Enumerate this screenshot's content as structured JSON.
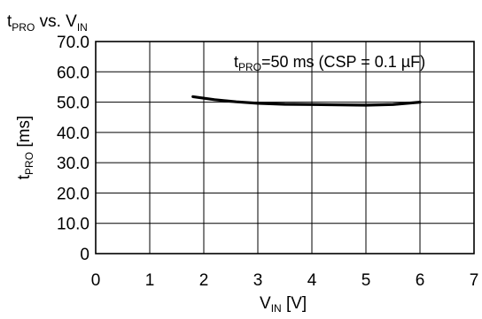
{
  "chart_data": {
    "type": "line",
    "title": {
      "main": "t",
      "sub": "PRO",
      "rest": " vs. V",
      "sub2": "IN"
    },
    "xlabel": {
      "main": "V",
      "sub": "IN",
      "rest": " [V]"
    },
    "ylabel": {
      "main": "t",
      "sub": "PRO",
      "rest": " [ms]"
    },
    "xlim": [
      0,
      7
    ],
    "ylim": [
      0,
      70
    ],
    "x_ticks": [
      "0",
      "1",
      "2",
      "3",
      "4",
      "5",
      "6",
      "7"
    ],
    "y_ticks": [
      "0",
      "10.0",
      "20.0",
      "30.0",
      "40.0",
      "50.0",
      "60.0",
      "70.0"
    ],
    "grid": true,
    "annotation": {
      "main": "t",
      "sub": "PRO",
      "rest": "=50 ms (CSP = 0.1 µF)"
    },
    "series": [
      {
        "color": "#000000",
        "x": [
          1.8,
          2.2,
          2.6,
          3.0,
          3.5,
          4.0,
          4.5,
          5.0,
          5.5,
          6.0
        ],
        "y": [
          51.8,
          50.8,
          50.1,
          49.6,
          49.3,
          49.2,
          49.1,
          49.0,
          49.2,
          50.0
        ]
      }
    ]
  }
}
